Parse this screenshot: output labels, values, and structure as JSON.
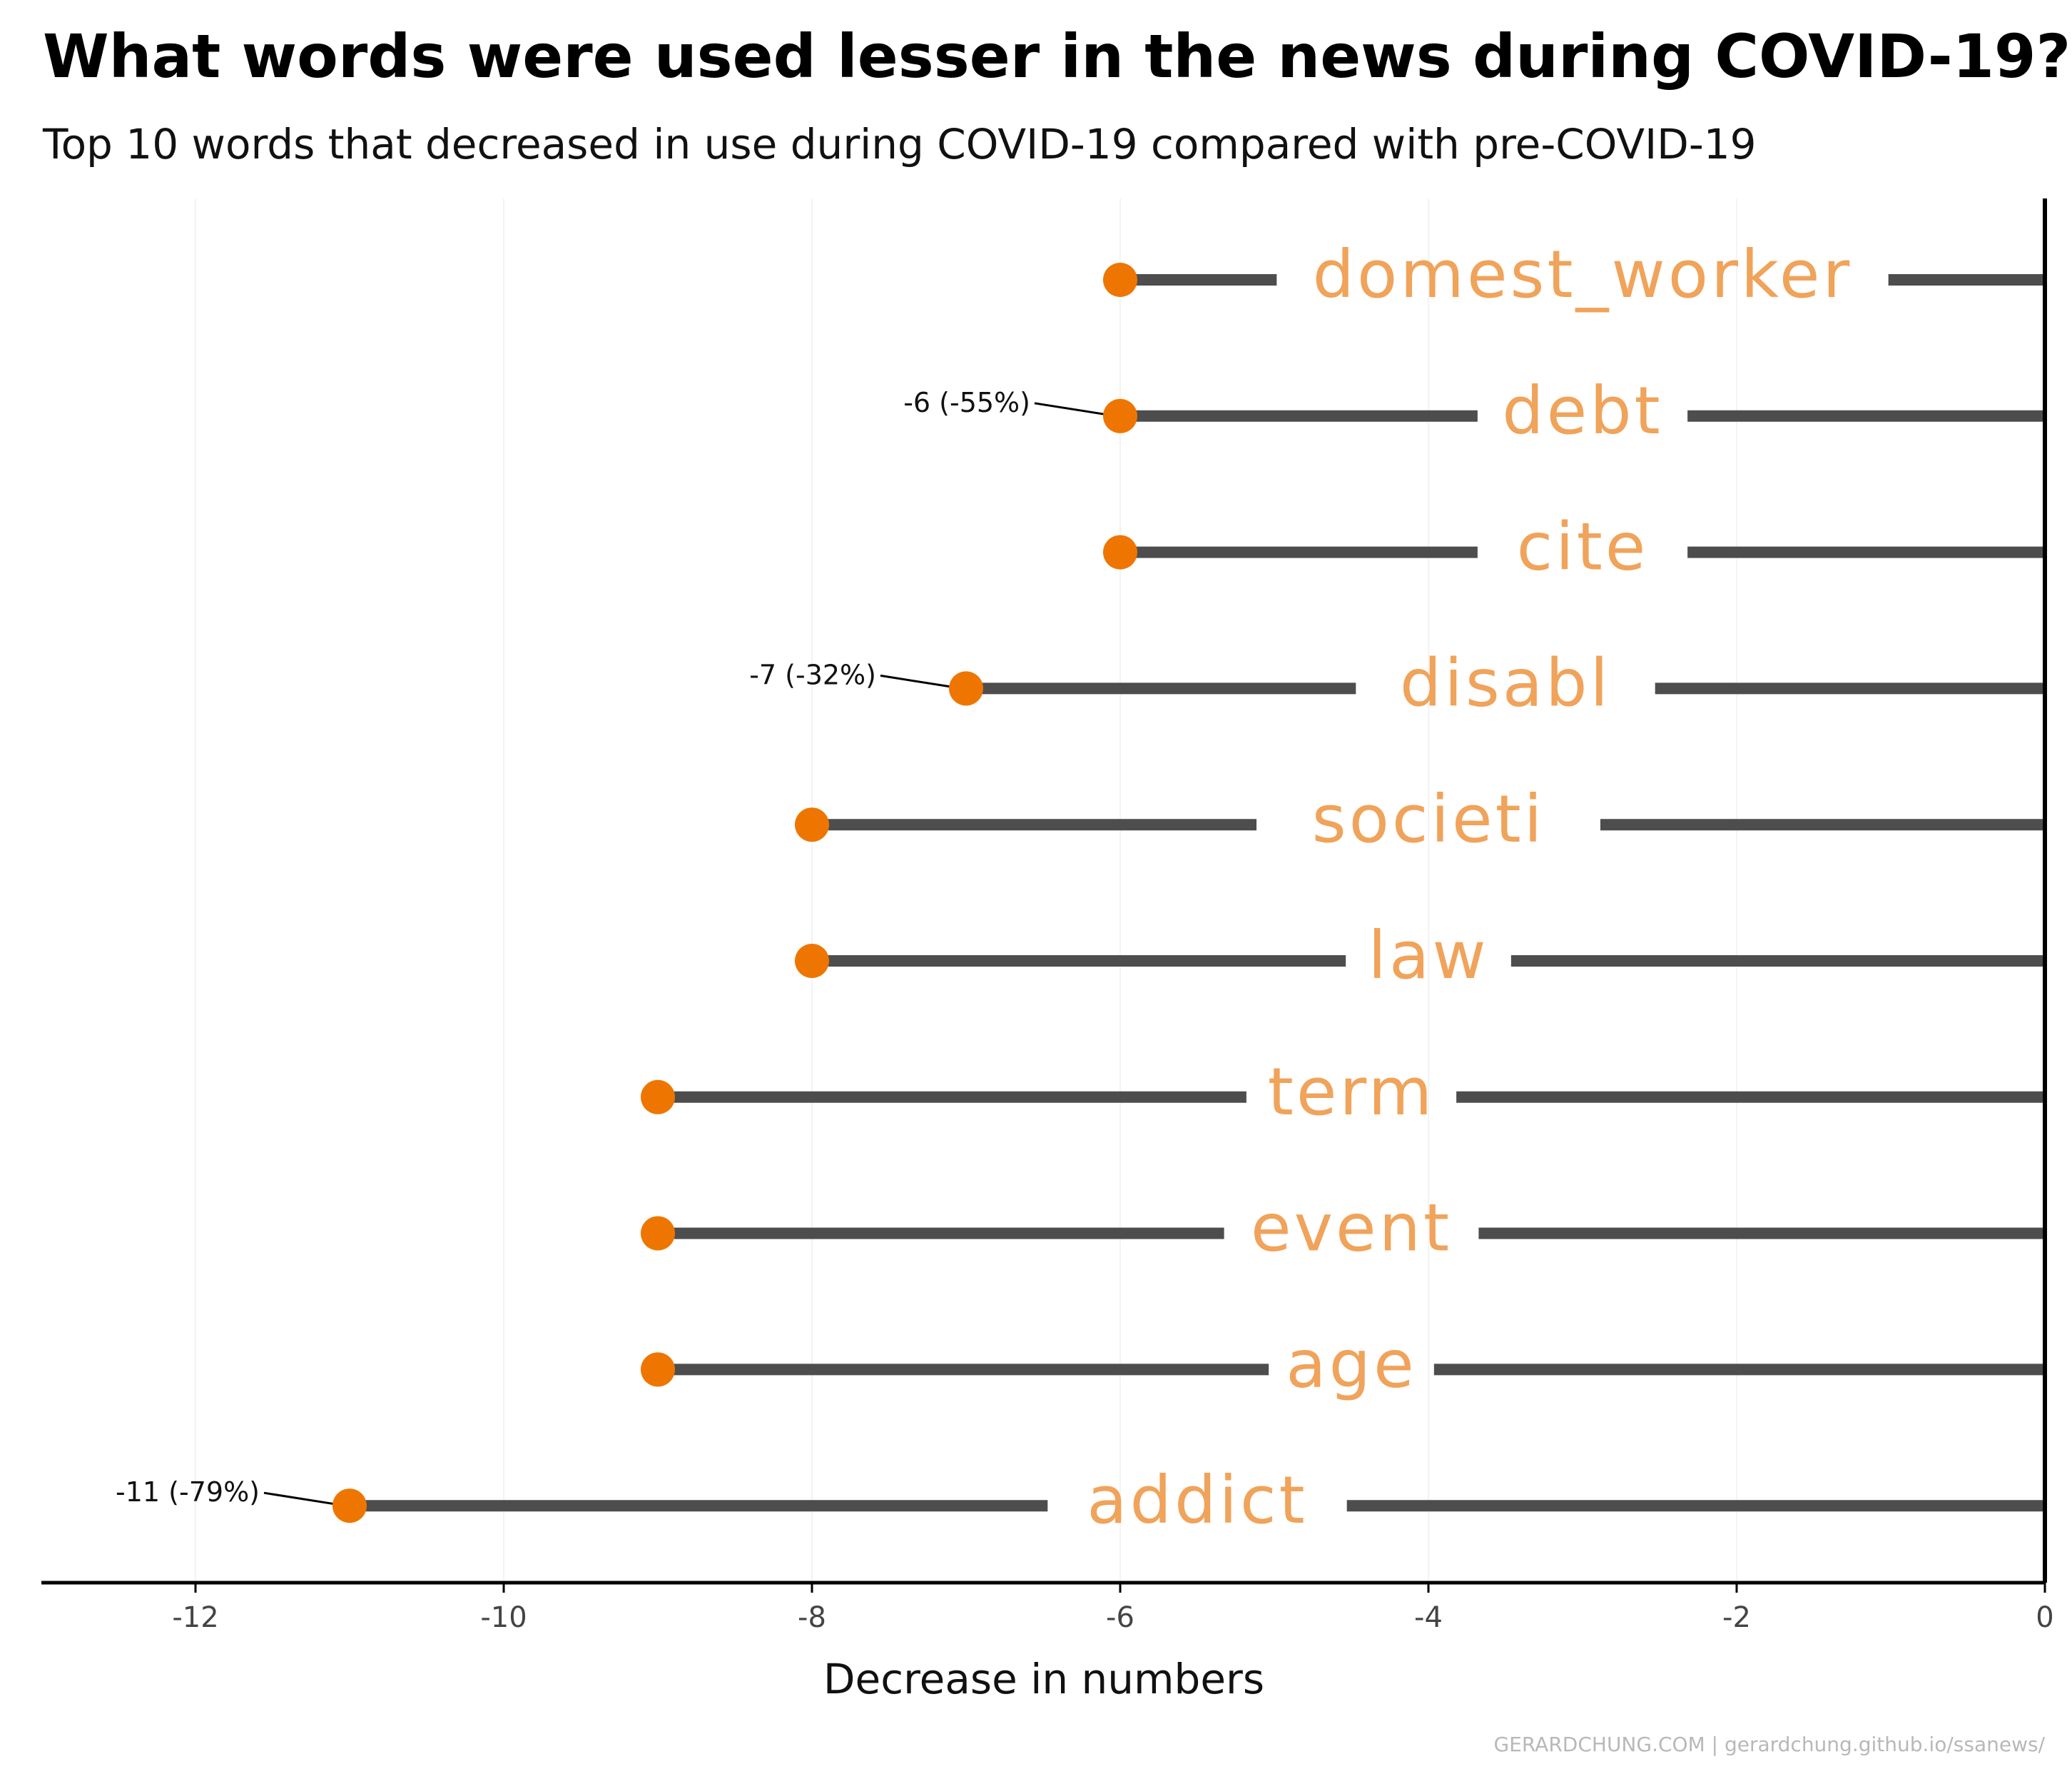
{
  "chart_data": {
    "type": "lollipop",
    "title": "What words were used lesser in the news during COVID-19?",
    "subtitle": "Top 10 words that decreased in use during COVID-19 compared with pre-COVID-19",
    "xlabel": "Decrease in numbers",
    "xlim": [
      -13,
      0
    ],
    "xticks": [
      -12,
      -10,
      -8,
      -6,
      -4,
      -2,
      0
    ],
    "xtick_labels": [
      "-12",
      "-10",
      "-8",
      "-6",
      "-4",
      "-2",
      "0"
    ],
    "grid": "vertical, faint",
    "categories": [
      "domest_worker",
      "debt",
      "cite",
      "disabl",
      "societi",
      "law",
      "term",
      "event",
      "age",
      "addict"
    ],
    "values": [
      -6,
      -6,
      -6,
      -7,
      -8,
      -8,
      -9,
      -9,
      -9,
      -11
    ],
    "annotations": [
      {
        "word": "debt",
        "value": -6,
        "label": "-6 (-55%)"
      },
      {
        "word": "disabl",
        "value": -7,
        "label": "-7 (-32%)"
      },
      {
        "word": "addict",
        "value": -11,
        "label": "-11 (-79%)"
      }
    ],
    "colors": {
      "point": "#ee7600",
      "segment": "#4d4d4d",
      "word_label": "#f0a35a"
    },
    "caption": "GERARDCHUNG.COM  |  gerardchung.github.io/ssanews/"
  }
}
